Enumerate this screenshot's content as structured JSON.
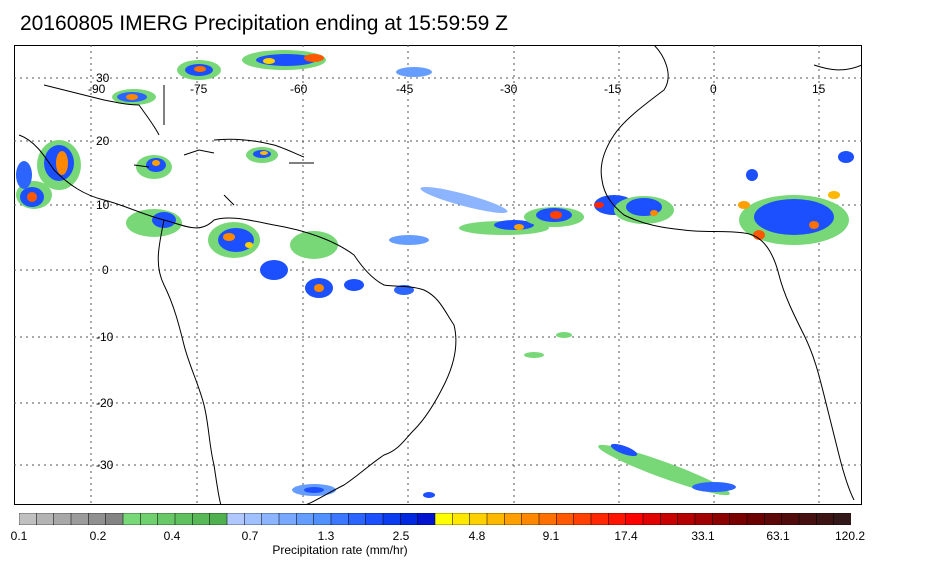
{
  "title": "20160805 IMERG Precipitation ending at 15:59:59 Z",
  "longitude_labels": [
    "-90",
    "-75",
    "-60",
    "-45",
    "-30",
    "-15",
    "0",
    "15"
  ],
  "latitude_labels": [
    "30",
    "20",
    "10",
    "0",
    "-10",
    "-20",
    "-30"
  ],
  "colorbar": {
    "title": "Precipitation rate (mm/hr)",
    "tick_labels": [
      "0.1",
      "0.2",
      "0.4",
      "0.7",
      "1.3",
      "2.5",
      "4.8",
      "9.1",
      "17.4",
      "33.1",
      "63.1",
      "120.2"
    ],
    "colors": [
      "#c0c0c0",
      "#b4b4b4",
      "#a8a8a8",
      "#9c9c9c",
      "#909090",
      "#848484",
      "#78d878",
      "#70d070",
      "#68c868",
      "#60c060",
      "#58b858",
      "#50b050",
      "#b0c8ff",
      "#a0c0ff",
      "#8cb4ff",
      "#78a8ff",
      "#649cff",
      "#5090ff",
      "#3c78ff",
      "#2c64ff",
      "#1c50ff",
      "#0c3cf0",
      "#0028e0",
      "#0014d0",
      "#ffff00",
      "#ffe800",
      "#ffd000",
      "#ffb800",
      "#ffa000",
      "#ff8800",
      "#ff7000",
      "#ff5800",
      "#ff4000",
      "#ff2800",
      "#ff1400",
      "#ff0000",
      "#e00000",
      "#c80000",
      "#b40000",
      "#a00000",
      "#8c0000",
      "#780000",
      "#6a0000",
      "#5c0808",
      "#500c0c",
      "#461010",
      "#3c1414",
      "#321818"
    ]
  },
  "map": {
    "region": "Tropical Atlantic, South America and West Africa",
    "projection": "cylindrical equidistant",
    "lon_range": [
      -100,
      20
    ],
    "lat_range": [
      -37,
      35
    ],
    "grid": true
  }
}
